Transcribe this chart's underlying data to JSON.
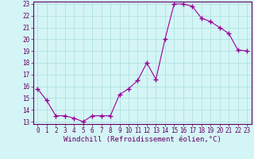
{
  "x": [
    0,
    1,
    2,
    3,
    4,
    5,
    6,
    7,
    8,
    9,
    10,
    11,
    12,
    13,
    14,
    15,
    16,
    17,
    18,
    19,
    20,
    21,
    22,
    23
  ],
  "y": [
    15.8,
    14.8,
    13.5,
    13.5,
    13.3,
    13.0,
    13.5,
    13.5,
    13.5,
    15.3,
    15.8,
    16.5,
    18.0,
    16.6,
    20.0,
    23.0,
    23.0,
    22.8,
    21.8,
    21.5,
    21.0,
    20.5,
    19.1,
    19.0
  ],
  "line_color": "#990099",
  "marker": "+",
  "marker_size": 4,
  "marker_linewidth": 1.0,
  "background_color": "#d4f5f5",
  "grid_color": "#aadddd",
  "xlabel": "Windchill (Refroidissement éolien,°C)",
  "ylabel": "",
  "xlim": [
    -0.5,
    23.5
  ],
  "ylim": [
    12.8,
    23.2
  ],
  "yticks": [
    13,
    14,
    15,
    16,
    17,
    18,
    19,
    20,
    21,
    22,
    23
  ],
  "xticks": [
    0,
    1,
    2,
    3,
    4,
    5,
    6,
    7,
    8,
    9,
    10,
    11,
    12,
    13,
    14,
    15,
    16,
    17,
    18,
    19,
    20,
    21,
    22,
    23
  ],
  "tick_fontsize": 5.5,
  "xlabel_fontsize": 6.5,
  "line_color_spine": "#660066",
  "axis_label_color": "#660066",
  "linewidth": 0.8
}
